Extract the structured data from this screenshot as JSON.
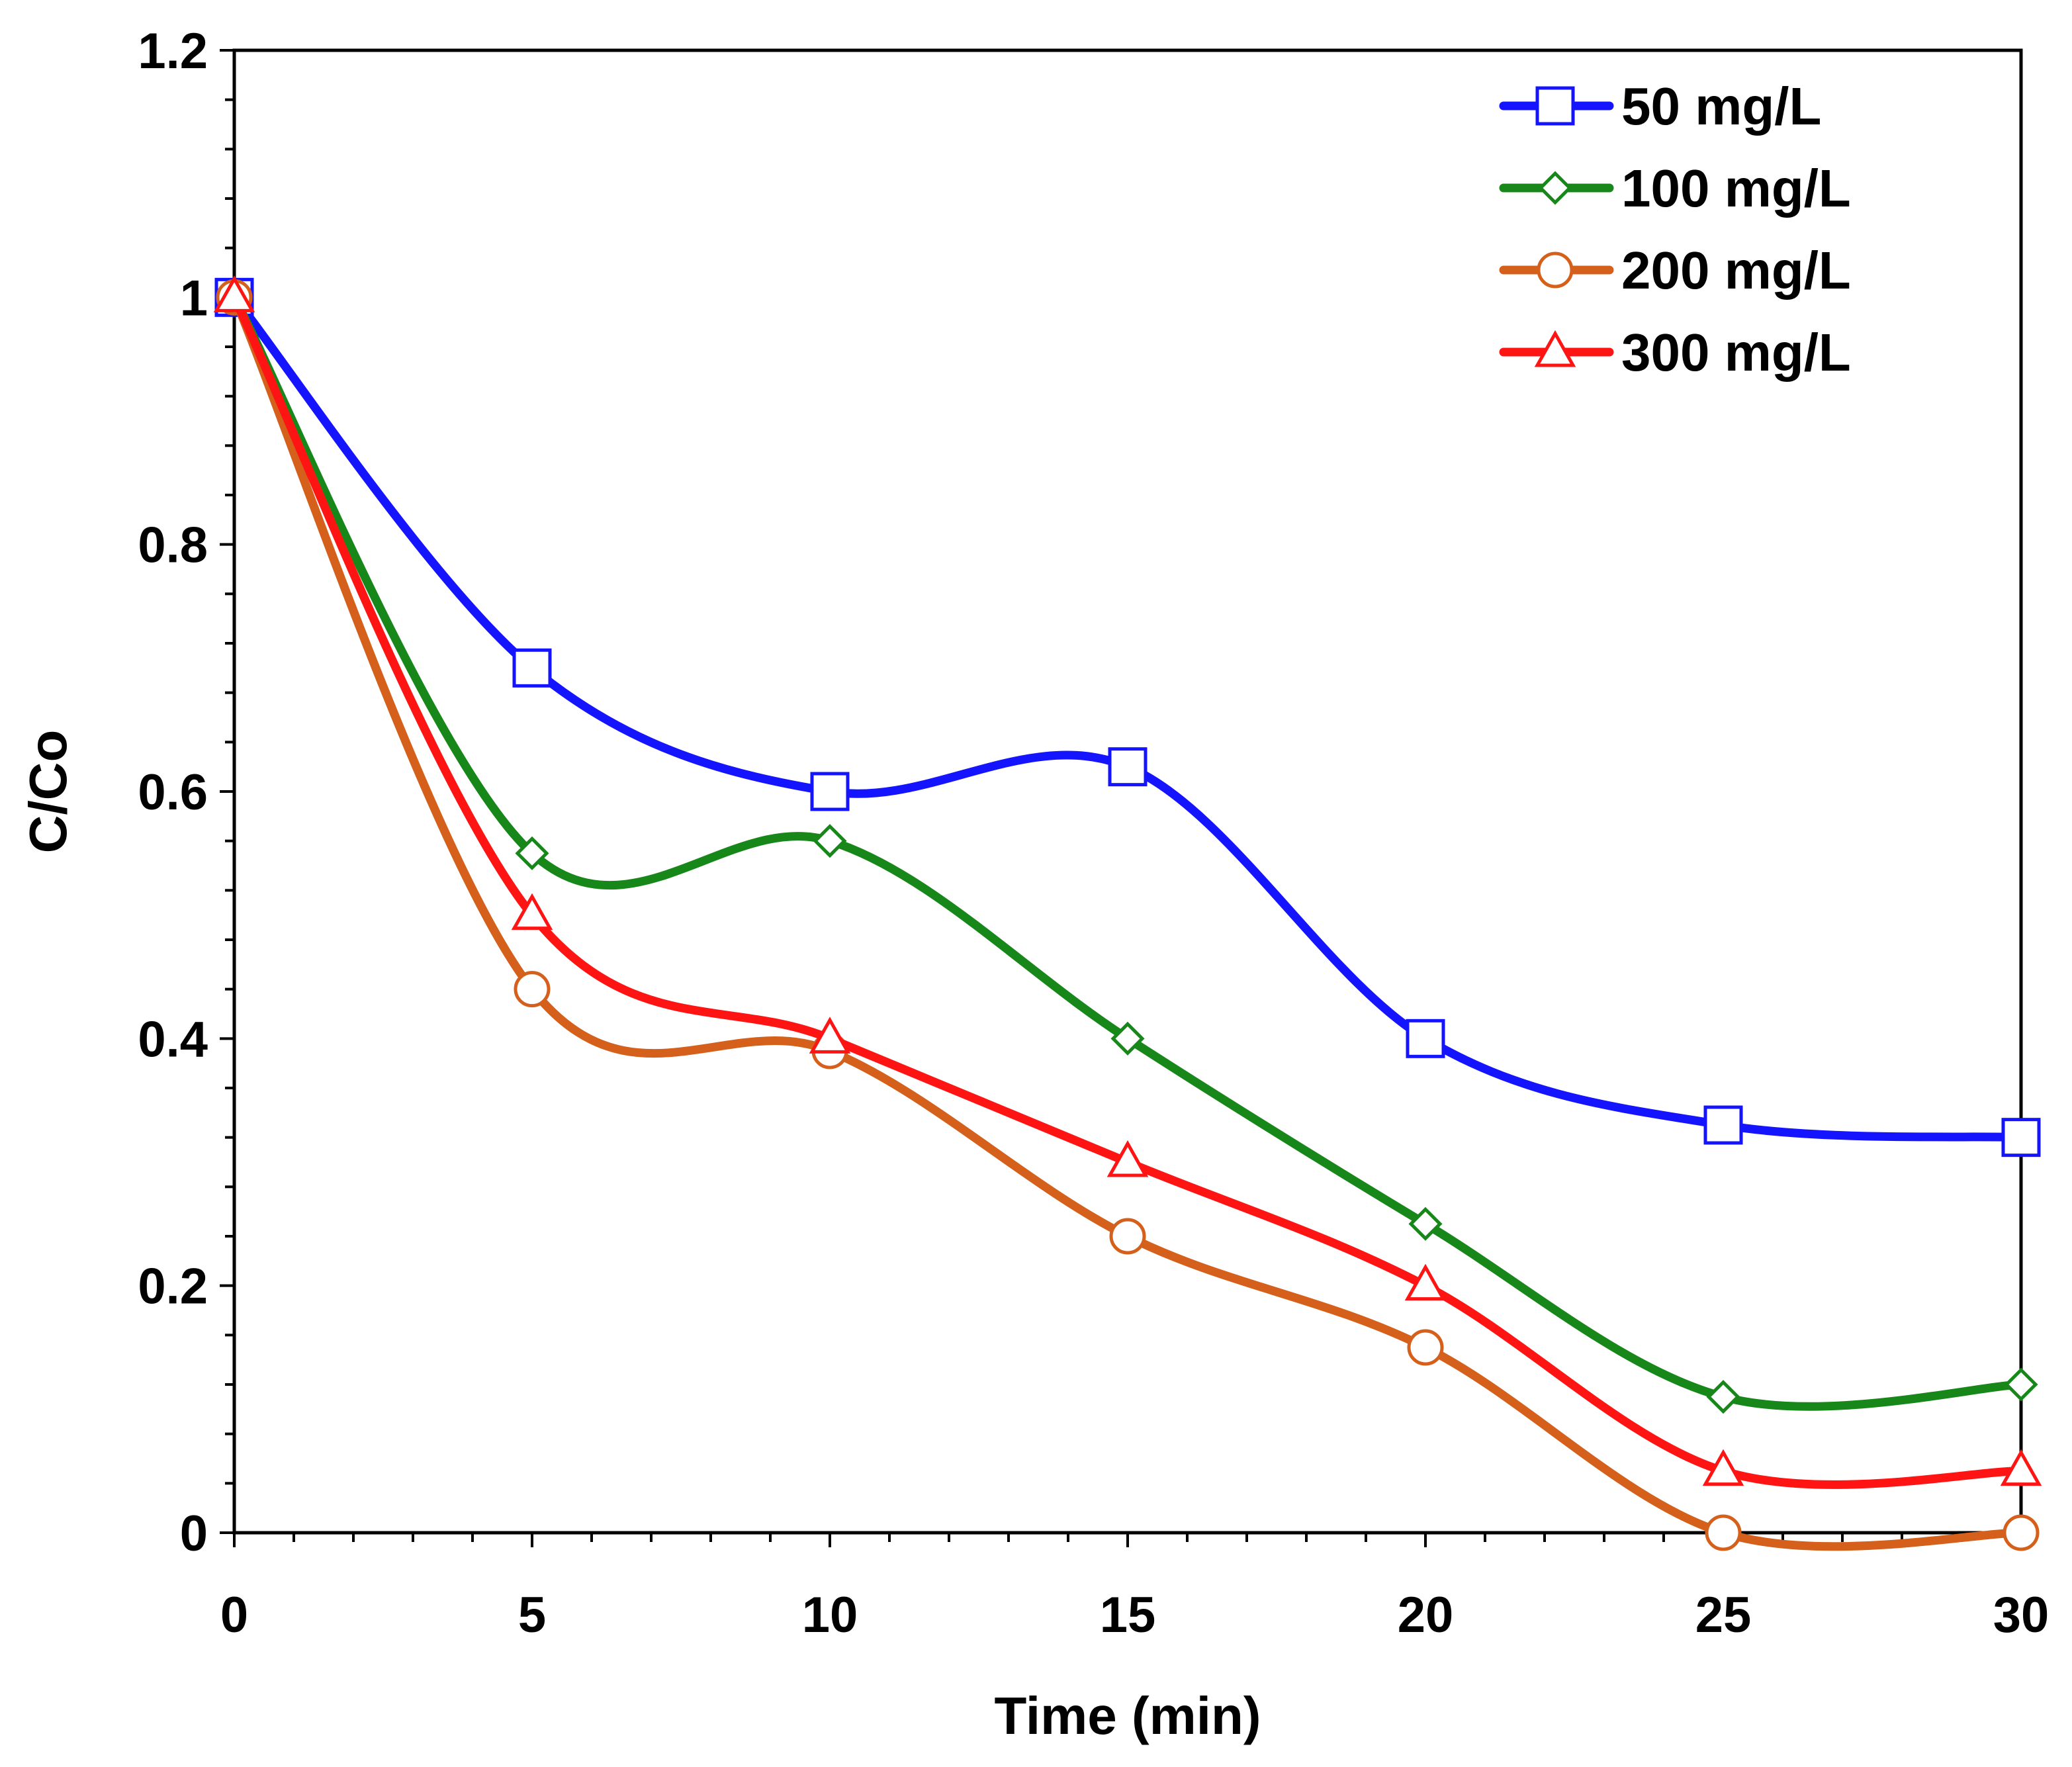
{
  "chart_data": {
    "type": "line",
    "title": "",
    "xlabel": "Time (min)",
    "ylabel": "C/Co",
    "xlim": [
      0,
      30
    ],
    "ylim": [
      0,
      1.2
    ],
    "xticks": [
      0,
      5,
      10,
      15,
      20,
      25,
      30
    ],
    "xtick_labels": [
      "0",
      "5",
      "10",
      "15",
      "20",
      "25",
      "30"
    ],
    "yticks": [
      0,
      0.2,
      0.4,
      0.6,
      0.8,
      1,
      1.2
    ],
    "ytick_labels": [
      "0",
      "0.2",
      "0.4",
      "0.6",
      "0.8",
      "1",
      "1.2"
    ],
    "grid": false,
    "legend_position": "top-right",
    "x": [
      0,
      5,
      10,
      15,
      20,
      25,
      30
    ],
    "series": [
      {
        "name": "50 mg/L",
        "color": "#1414ff",
        "marker": "square",
        "values": [
          1,
          0.7,
          0.6,
          0.62,
          0.4,
          0.33,
          0.32
        ]
      },
      {
        "name": "100 mg/L",
        "color": "#17871a",
        "marker": "diamond",
        "values": [
          1,
          0.55,
          0.56,
          0.4,
          0.25,
          0.11,
          0.12
        ]
      },
      {
        "name": "200 mg/L",
        "color": "#d4601c",
        "marker": "circle",
        "values": [
          1,
          0.44,
          0.39,
          0.24,
          0.15,
          0.0,
          0.0
        ]
      },
      {
        "name": "300 mg/L",
        "color": "#ff1414",
        "marker": "triangle",
        "values": [
          1,
          0.5,
          0.4,
          0.3,
          0.2,
          0.05,
          0.05
        ]
      }
    ]
  }
}
